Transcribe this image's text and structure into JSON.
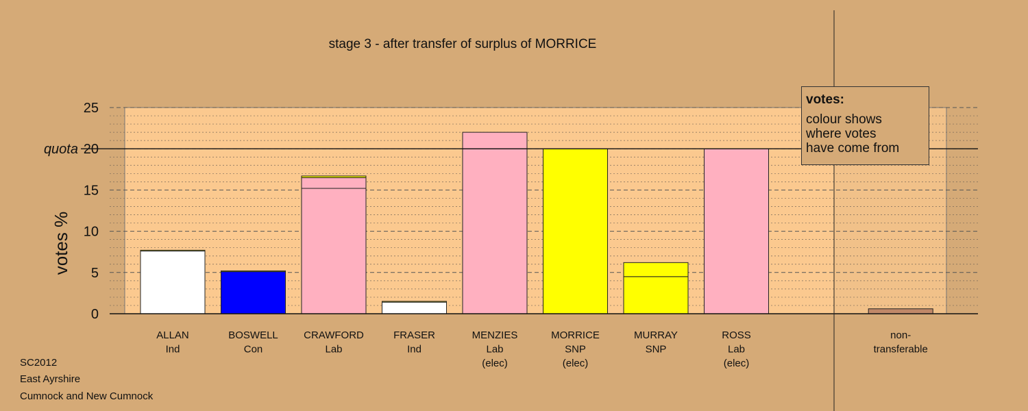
{
  "title": "stage 3 - after transfer of surplus of MORRICE",
  "legend": {
    "heading": "votes:",
    "lines": [
      "colour shows",
      "where votes",
      "have come from"
    ]
  },
  "source": [
    "SC2012",
    "East Ayrshire",
    "Cumnock and New Cumnock"
  ],
  "colors": {
    "background": "#d5aa77",
    "plot_area": "#fbc98f",
    "Ind": "#ffffff",
    "Con": "#0000ff",
    "Lab": "#ffb0c0",
    "SNP": "#ffff00",
    "nontransferable": "#c08868"
  },
  "chart_data": {
    "type": "bar",
    "stacked": true,
    "ylabel": "votes %",
    "ylim": [
      0,
      25
    ],
    "yticks": [
      0,
      5,
      10,
      15,
      20,
      25
    ],
    "quota": {
      "label": "quota",
      "value": 20
    },
    "grid": true,
    "categories": [
      {
        "lines": [
          "ALLAN",
          "Ind"
        ]
      },
      {
        "lines": [
          "BOSWELL",
          "Con"
        ]
      },
      {
        "lines": [
          "CRAWFORD",
          "Lab"
        ]
      },
      {
        "lines": [
          "FRASER",
          "Ind"
        ]
      },
      {
        "lines": [
          "MENZIES",
          "Lab",
          "(elec)"
        ]
      },
      {
        "lines": [
          "MORRICE",
          "SNP",
          "(elec)"
        ]
      },
      {
        "lines": [
          "MURRAY",
          "SNP"
        ]
      },
      {
        "lines": [
          "ROSS",
          "Lab",
          "(elec)"
        ]
      },
      {
        "lines": []
      },
      {
        "lines": [
          "non-",
          "transferable"
        ]
      }
    ],
    "bars": [
      {
        "segments": [
          {
            "value": 7.6,
            "color": "#ffffff"
          },
          {
            "value": 0.1,
            "color": "#ffff00"
          }
        ]
      },
      {
        "segments": [
          {
            "value": 5.1,
            "color": "#0000ff"
          },
          {
            "value": 0.1,
            "color": "#ffff00"
          }
        ]
      },
      {
        "segments": [
          {
            "value": 15.2,
            "color": "#ffb0c0"
          },
          {
            "value": 1.3,
            "color": "#ffb0c0"
          },
          {
            "value": 0.2,
            "color": "#ffff00"
          }
        ]
      },
      {
        "segments": [
          {
            "value": 1.4,
            "color": "#ffffff"
          },
          {
            "value": 0.1,
            "color": "#ffff00"
          }
        ]
      },
      {
        "segments": [
          {
            "value": 20.0,
            "color": "#ffb0c0"
          },
          {
            "value": 2.0,
            "color": "#ffb0c0"
          }
        ]
      },
      {
        "segments": [
          {
            "value": 20.0,
            "color": "#ffff00"
          }
        ]
      },
      {
        "segments": [
          {
            "value": 4.5,
            "color": "#ffff00"
          },
          {
            "value": 1.7,
            "color": "#ffff00"
          }
        ]
      },
      {
        "segments": [
          {
            "value": 20.0,
            "color": "#ffb0c0"
          }
        ]
      },
      {
        "segments": []
      },
      {
        "segments": [
          {
            "value": 0.6,
            "color": "#c08868"
          }
        ]
      }
    ]
  }
}
